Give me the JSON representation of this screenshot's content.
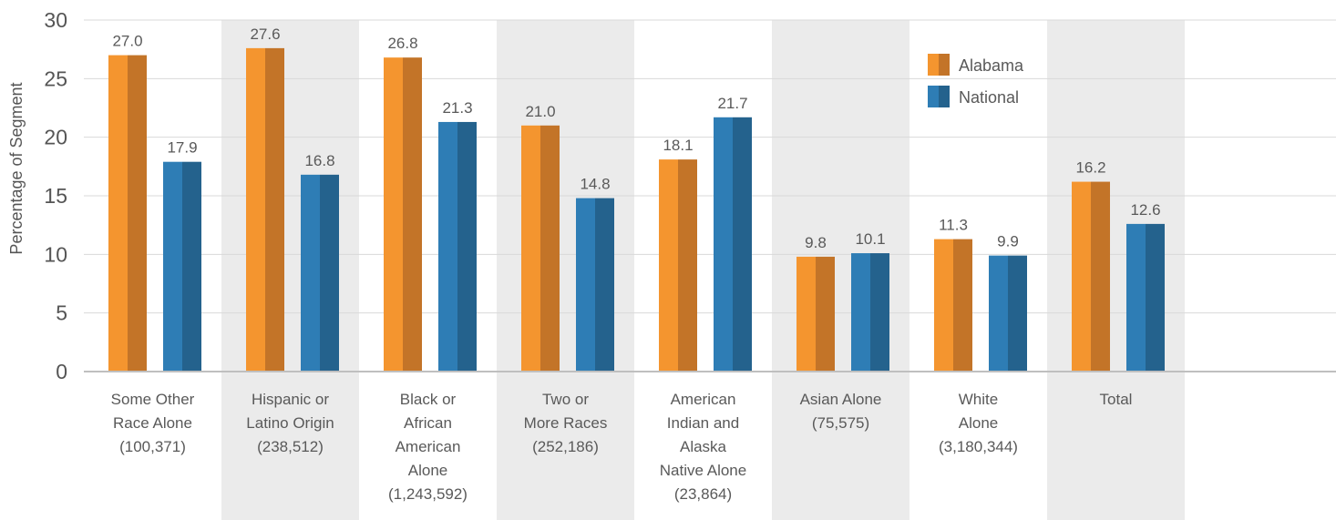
{
  "chart_data": {
    "type": "bar",
    "ylabel": "Percentage of Segment",
    "ylim": [
      0,
      30
    ],
    "yticks": [
      0,
      5,
      10,
      15,
      20,
      25,
      30
    ],
    "categories": [
      [
        "Some Other",
        "Race Alone",
        "(100,371)"
      ],
      [
        "Hispanic or",
        "Latino Origin",
        "(238,512)"
      ],
      [
        "Black or",
        "African",
        "American",
        "Alone",
        "(1,243,592)"
      ],
      [
        "Two or",
        "More Races",
        "(252,186)"
      ],
      [
        "American",
        "Indian and",
        "Alaska",
        "Native Alone",
        "(23,864)"
      ],
      [
        "Asian Alone",
        "(75,575)"
      ],
      [
        "White",
        "Alone",
        "(3,180,344)"
      ],
      [
        "Total"
      ]
    ],
    "series": [
      {
        "name": "Alabama",
        "values": [
          27.0,
          27.6,
          26.8,
          21.0,
          18.1,
          9.8,
          11.3,
          16.2
        ],
        "labels": [
          "27.0",
          "27.6",
          "26.8",
          "21.0",
          "18.1",
          "9.8",
          "11.3",
          "16.2"
        ],
        "color_light": "#F4952F",
        "color_dark": "#C37428"
      },
      {
        "name": "National",
        "values": [
          17.9,
          16.8,
          21.3,
          14.8,
          21.7,
          10.1,
          9.9,
          12.6
        ],
        "labels": [
          "17.9",
          "16.8",
          "21.3",
          "14.8",
          "21.7",
          "10.1",
          "9.9",
          "12.6"
        ],
        "color_light": "#2E7DB5",
        "color_dark": "#24628D"
      }
    ],
    "shaded_categories": [
      1,
      3,
      5,
      7
    ],
    "shade_color": "#EBEBEB",
    "legend_position": "top-right"
  }
}
